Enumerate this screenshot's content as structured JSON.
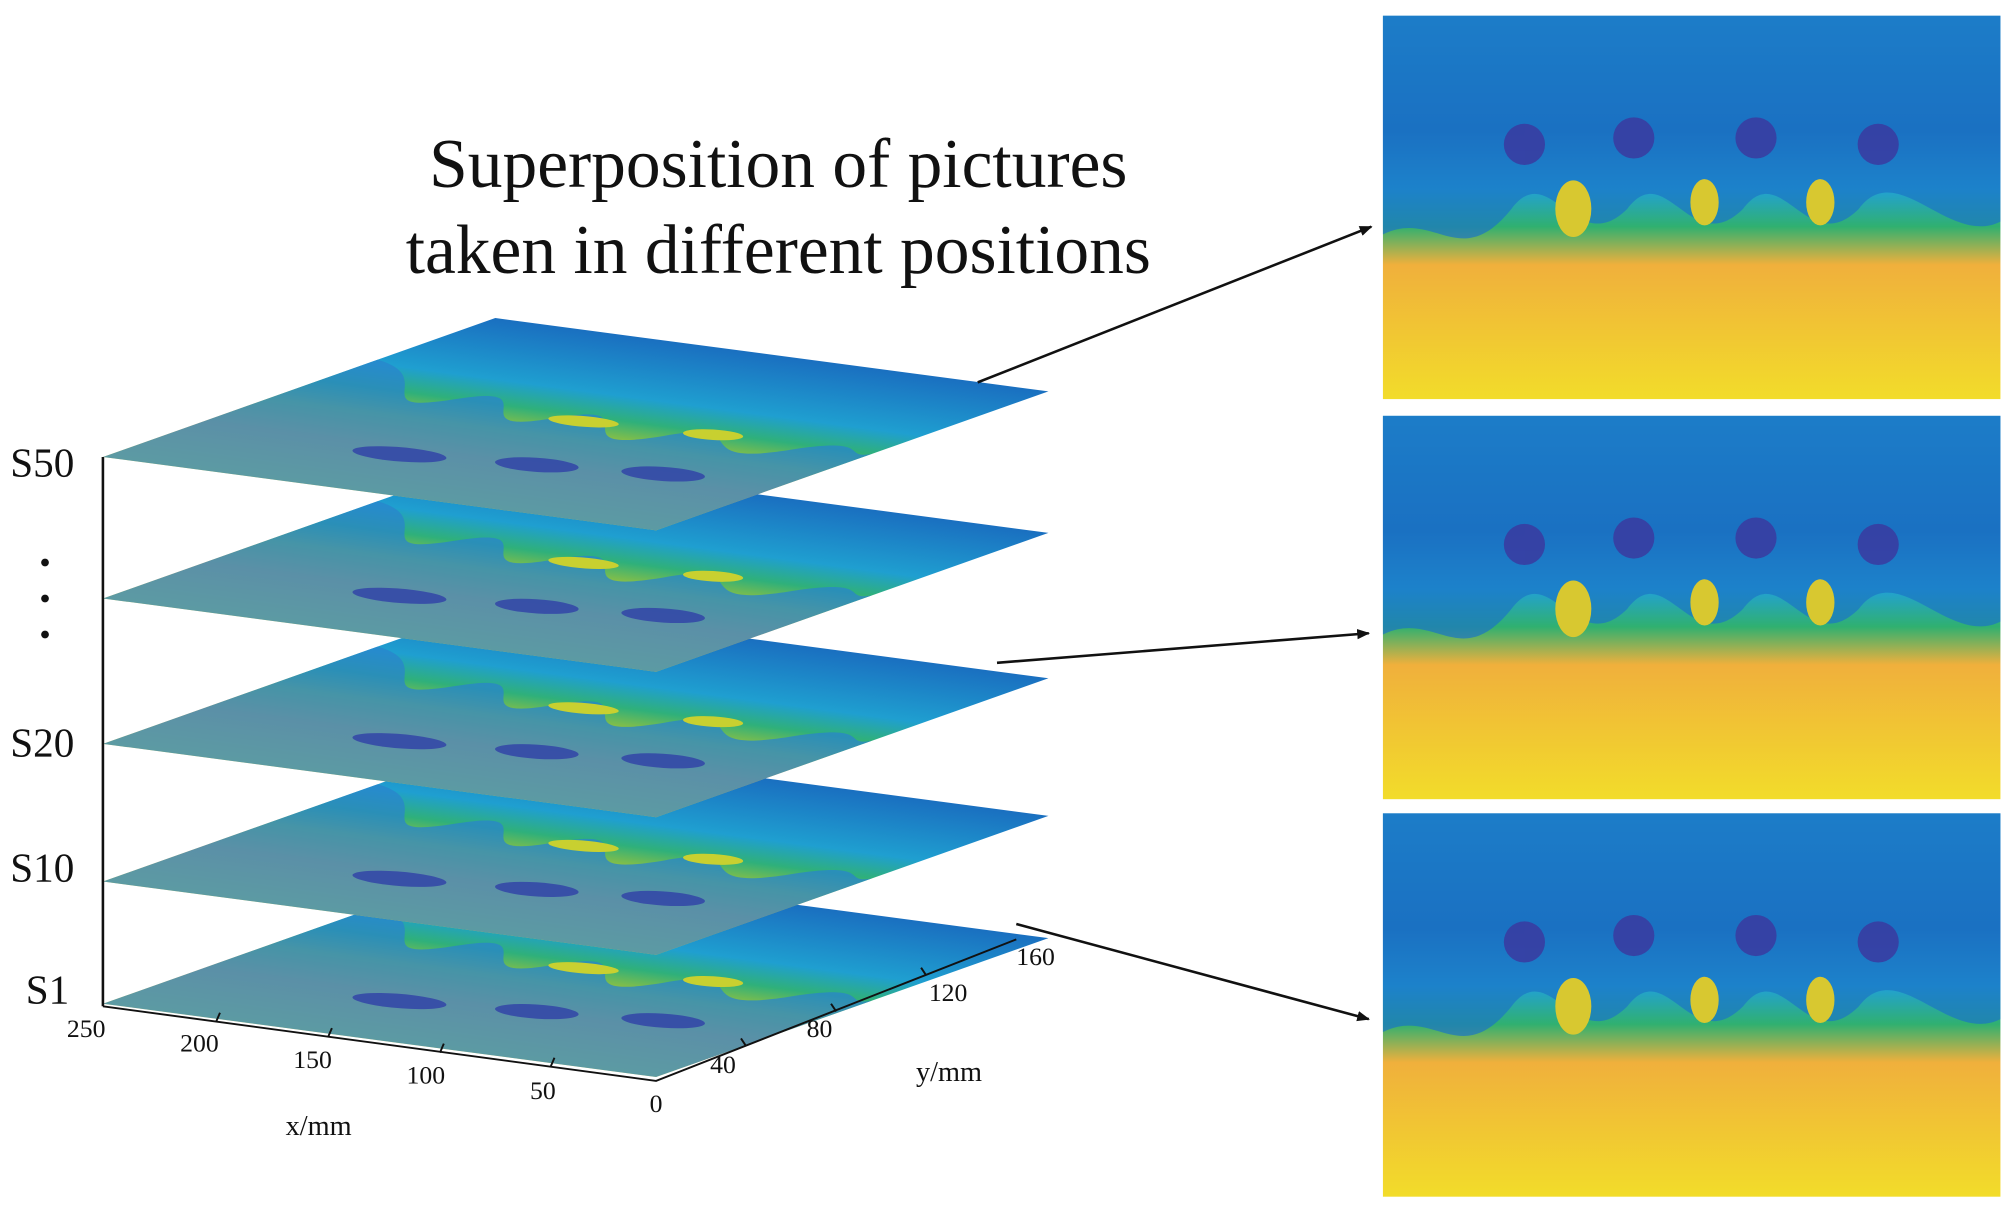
{
  "title": {
    "lines": [
      "Superposition of pictures",
      "taken in different positions"
    ]
  },
  "layer_labels": [
    "S50",
    "S20",
    "S10",
    "S1"
  ],
  "x_axis": {
    "label": "x/mm",
    "ticks": [
      250,
      200,
      150,
      100,
      50,
      0
    ]
  },
  "y_axis": {
    "label": "y/mm",
    "ticks": [
      40,
      80,
      120,
      160
    ]
  }
}
